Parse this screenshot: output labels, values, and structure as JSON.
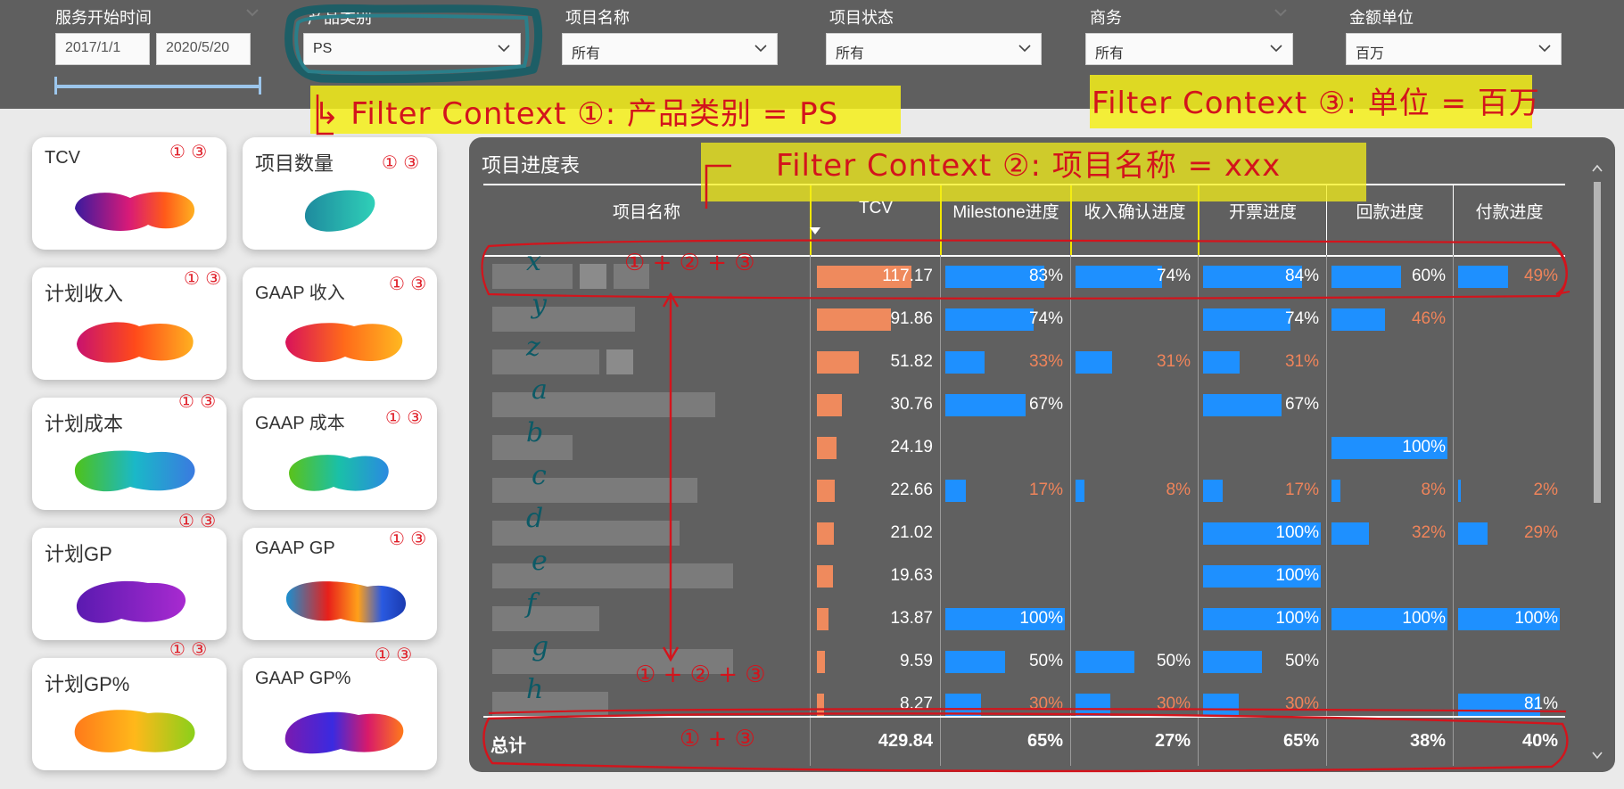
{
  "filters": {
    "service_time": {
      "label": "服务开始时间",
      "start": "2017/1/1",
      "end": "2020/5/20"
    },
    "product_category": {
      "label": "产品类别",
      "value": "PS"
    },
    "project_name": {
      "label": "项目名称",
      "value": "所有"
    },
    "project_status": {
      "label": "项目状态",
      "value": "所有"
    },
    "business": {
      "label": "商务",
      "value": "所有"
    },
    "amount_unit": {
      "label": "金额单位",
      "value": "百万"
    }
  },
  "kpi_cards": [
    {
      "title": "TCV",
      "marker": "① ③"
    },
    {
      "title": "项目数量",
      "marker": "① ③"
    },
    {
      "title": "计划收入",
      "marker": "① ③"
    },
    {
      "title": "GAAP 收入",
      "marker": "① ③"
    },
    {
      "title": "计划成本",
      "marker": "① ③"
    },
    {
      "title": "GAAP 成本",
      "marker": "① ③"
    },
    {
      "title": "计划GP",
      "marker": "① ③"
    },
    {
      "title": "GAAP GP",
      "marker": "① ③"
    },
    {
      "title": "计划GP%",
      "marker": "① ③"
    },
    {
      "title": "GAAP GP%",
      "marker": "① ③"
    }
  ],
  "table": {
    "title": "项目进度表",
    "columns": [
      "项目名称",
      "TCV",
      "Milestone进度",
      "收入确认进度",
      "开票进度",
      "回款进度",
      "付款进度"
    ],
    "rows": [
      {
        "tcv": "117.17",
        "tcv_frac": 1.0,
        "ms": "83%",
        "ms_f": 0.83,
        "rev": "74%",
        "rev_f": 0.74,
        "inv": "84%",
        "inv_f": 0.84,
        "col": "60%",
        "col_f": 0.6,
        "pay": "49%",
        "pay_f": 0.49
      },
      {
        "tcv": "91.86",
        "tcv_frac": 0.784,
        "ms": "74%",
        "ms_f": 0.74,
        "rev": "",
        "rev_f": 0,
        "inv": "74%",
        "inv_f": 0.74,
        "col": "46%",
        "col_f": 0.46,
        "pay": "",
        "pay_f": 0
      },
      {
        "tcv": "51.82",
        "tcv_frac": 0.442,
        "ms": "33%",
        "ms_f": 0.33,
        "rev": "31%",
        "rev_f": 0.31,
        "inv": "31%",
        "inv_f": 0.31,
        "col": "",
        "col_f": 0,
        "pay": "",
        "pay_f": 0
      },
      {
        "tcv": "30.76",
        "tcv_frac": 0.262,
        "ms": "67%",
        "ms_f": 0.67,
        "rev": "",
        "rev_f": 0,
        "inv": "67%",
        "inv_f": 0.67,
        "col": "",
        "col_f": 0,
        "pay": "",
        "pay_f": 0
      },
      {
        "tcv": "24.19",
        "tcv_frac": 0.206,
        "ms": "",
        "ms_f": 0,
        "rev": "",
        "rev_f": 0,
        "inv": "",
        "inv_f": 0,
        "col": "100%",
        "col_f": 1.0,
        "pay": "",
        "pay_f": 0
      },
      {
        "tcv": "22.66",
        "tcv_frac": 0.193,
        "ms": "17%",
        "ms_f": 0.17,
        "rev": "8%",
        "rev_f": 0.08,
        "inv": "17%",
        "inv_f": 0.17,
        "col": "8%",
        "col_f": 0.08,
        "pay": "2%",
        "pay_f": 0.02
      },
      {
        "tcv": "21.02",
        "tcv_frac": 0.179,
        "ms": "",
        "ms_f": 0,
        "rev": "",
        "rev_f": 0,
        "inv": "100%",
        "inv_f": 1.0,
        "col": "32%",
        "col_f": 0.32,
        "pay": "29%",
        "pay_f": 0.29
      },
      {
        "tcv": "19.63",
        "tcv_frac": 0.168,
        "ms": "",
        "ms_f": 0,
        "rev": "",
        "rev_f": 0,
        "inv": "100%",
        "inv_f": 1.0,
        "col": "",
        "col_f": 0,
        "pay": "",
        "pay_f": 0
      },
      {
        "tcv": "13.87",
        "tcv_frac": 0.118,
        "ms": "100%",
        "ms_f": 1.0,
        "rev": "",
        "rev_f": 0,
        "inv": "100%",
        "inv_f": 1.0,
        "col": "100%",
        "col_f": 1.0,
        "pay": "100%",
        "pay_f": 1.0
      },
      {
        "tcv": "9.59",
        "tcv_frac": 0.082,
        "ms": "50%",
        "ms_f": 0.5,
        "rev": "50%",
        "rev_f": 0.5,
        "inv": "50%",
        "inv_f": 0.5,
        "col": "",
        "col_f": 0,
        "pay": "",
        "pay_f": 0
      },
      {
        "tcv": "8.27",
        "tcv_frac": 0.071,
        "ms": "30%",
        "ms_f": 0.3,
        "rev": "30%",
        "rev_f": 0.3,
        "inv": "30%",
        "inv_f": 0.3,
        "col": "",
        "col_f": 0,
        "pay": "81%",
        "pay_f": 0.81
      }
    ],
    "total": {
      "label": "总计",
      "tcv": "429.84",
      "ms": "65%",
      "rev": "27%",
      "inv": "65%",
      "col": "38%",
      "pay": "40%"
    }
  },
  "annotations": {
    "filter1": "↳ Filter Context ①: 产品类别 = PS",
    "filter2": "Filter Context ②: 项目名称 = xxx",
    "filter3": "Filter Context ③: 单位 = 百万",
    "row_marker": "① + ② + ③",
    "column_marker": "① + ② + ③",
    "total_marker": "① + ③",
    "row_letters": [
      "x",
      "y",
      "z",
      "a",
      "b",
      "c",
      "d",
      "e",
      "f",
      "g",
      "h"
    ]
  },
  "colors": {
    "filter_bg": "#5f5f5f",
    "panel_bg": "#606060",
    "tcv_bar": "#ef8a5d",
    "progress_bar": "#1e90ff",
    "low_value_text": "#f0845a",
    "annotation_red": "#d3141c",
    "highlight_yellow": "#f4ef19"
  }
}
